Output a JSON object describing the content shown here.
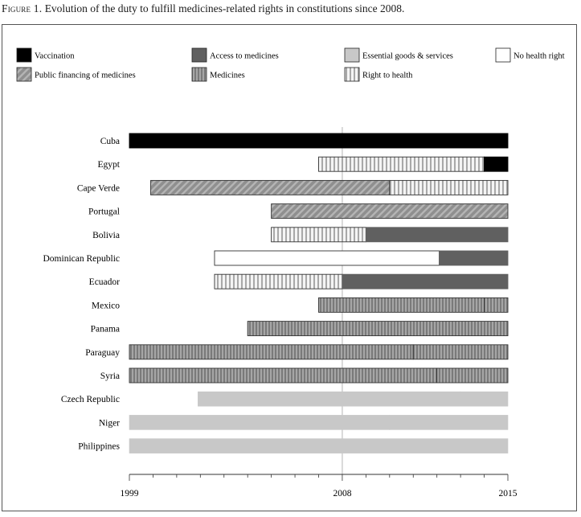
{
  "caption": {
    "label": "Figure 1.",
    "title": "Evolution of the duty to fulfill medicines-related rights in constitutions since 2008."
  },
  "chart_data": {
    "type": "bar",
    "orientation": "horizontal",
    "stacked_timeline": true,
    "title": "Evolution of the duty to fulfill medicines-related rights in constitutions since 2008.",
    "xlabel": "",
    "ylabel": "",
    "xlim": [
      1999,
      2015
    ],
    "x_ticks": [
      1999,
      2008,
      2015
    ],
    "reference_line": 2008,
    "grid": false,
    "legend_position": "top",
    "categories": [
      {
        "key": "vaccination",
        "label": "Vaccination",
        "color": "#000000",
        "pattern": "solid"
      },
      {
        "key": "access",
        "label": "Access to medicines",
        "color": "#606060",
        "pattern": "solid"
      },
      {
        "key": "essential",
        "label": "Essential goods & services",
        "color": "#c8c8c8",
        "pattern": "solid"
      },
      {
        "key": "none",
        "label": "No health right",
        "color": "#ffffff",
        "pattern": "solid"
      },
      {
        "key": "financing",
        "label": "Public financing of medicines",
        "color": "#8a8a8a",
        "pattern": "diagonal"
      },
      {
        "key": "medicines",
        "label": "Medicines",
        "color": "#8c8c8c",
        "pattern": "vertical-dark"
      },
      {
        "key": "health",
        "label": "Right to health",
        "color": "#e6e6e6",
        "pattern": "vertical-light"
      }
    ],
    "countries": [
      {
        "name": "Cuba",
        "segments": [
          {
            "from": 1999,
            "to": 2015,
            "cat": "vaccination"
          }
        ]
      },
      {
        "name": "Egypt",
        "segments": [
          {
            "from": 2007,
            "to": 2014,
            "cat": "health"
          },
          {
            "from": 2014,
            "to": 2015,
            "cat": "vaccination"
          }
        ]
      },
      {
        "name": "Cape Verde",
        "segments": [
          {
            "from": 1999.9,
            "to": 2010,
            "cat": "financing"
          },
          {
            "from": 2010,
            "to": 2015,
            "cat": "health"
          }
        ]
      },
      {
        "name": "Portugal",
        "segments": [
          {
            "from": 2005,
            "to": 2015,
            "cat": "financing"
          }
        ]
      },
      {
        "name": "Bolivia",
        "segments": [
          {
            "from": 2005,
            "to": 2009,
            "cat": "health"
          },
          {
            "from": 2009,
            "to": 2015,
            "cat": "access"
          }
        ]
      },
      {
        "name": "Dominican Republic",
        "segments": [
          {
            "from": 2002.6,
            "to": 2012.1,
            "cat": "none"
          },
          {
            "from": 2012.1,
            "to": 2015,
            "cat": "access"
          }
        ]
      },
      {
        "name": "Ecuador",
        "segments": [
          {
            "from": 2002.6,
            "to": 2008,
            "cat": "health"
          },
          {
            "from": 2008,
            "to": 2015,
            "cat": "access"
          }
        ]
      },
      {
        "name": "Mexico",
        "segments": [
          {
            "from": 2007,
            "to": 2014,
            "cat": "medicines"
          },
          {
            "from": 2014,
            "to": 2015,
            "cat": "medicines"
          }
        ]
      },
      {
        "name": "Panama",
        "segments": [
          {
            "from": 2004,
            "to": 2015,
            "cat": "medicines"
          }
        ]
      },
      {
        "name": "Paraguay",
        "segments": [
          {
            "from": 1999,
            "to": 2011,
            "cat": "medicines"
          },
          {
            "from": 2011,
            "to": 2015,
            "cat": "medicines"
          }
        ]
      },
      {
        "name": "Syria",
        "segments": [
          {
            "from": 1999,
            "to": 2012,
            "cat": "medicines"
          },
          {
            "from": 2012,
            "to": 2015,
            "cat": "medicines"
          }
        ]
      },
      {
        "name": "Czech Republic",
        "segments": [
          {
            "from": 2001.9,
            "to": 2013,
            "cat": "essential"
          },
          {
            "from": 2013,
            "to": 2015,
            "cat": "essential"
          }
        ]
      },
      {
        "name": "Niger",
        "segments": [
          {
            "from": 1999,
            "to": 2010,
            "cat": "essential"
          },
          {
            "from": 2010,
            "to": 2015,
            "cat": "essential"
          }
        ]
      },
      {
        "name": "Philippines",
        "segments": [
          {
            "from": 1999,
            "to": 2015,
            "cat": "essential"
          }
        ]
      }
    ]
  }
}
